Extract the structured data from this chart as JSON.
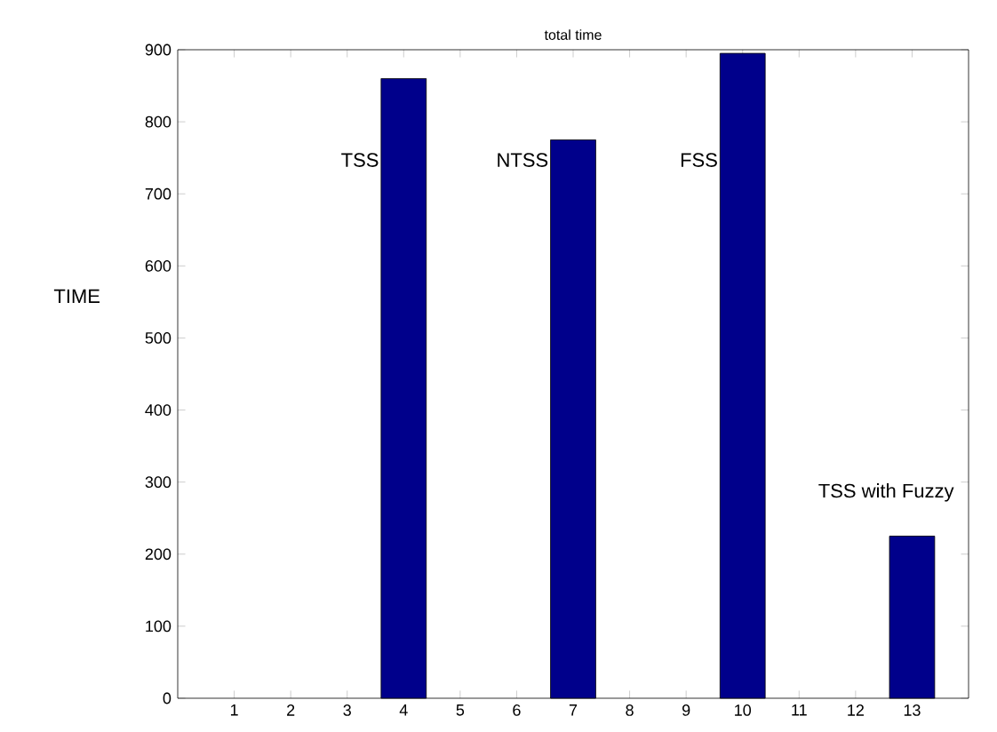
{
  "chart_data": {
    "type": "bar",
    "title": "total time",
    "ylabel": "TIME",
    "x": [
      4,
      7,
      10,
      13
    ],
    "values": [
      860,
      775,
      895,
      225
    ],
    "color": "#00008b",
    "xlim": [
      0,
      14
    ],
    "xticks": [
      1,
      2,
      3,
      4,
      5,
      6,
      7,
      8,
      9,
      10,
      11,
      12,
      13
    ],
    "ylim": [
      0,
      900
    ],
    "yticks": [
      0,
      100,
      200,
      300,
      400,
      500,
      600,
      700,
      800,
      900
    ],
    "annotations": [
      "TSS",
      "NTSS",
      "FSS",
      "TSS with Fuzzy"
    ]
  }
}
